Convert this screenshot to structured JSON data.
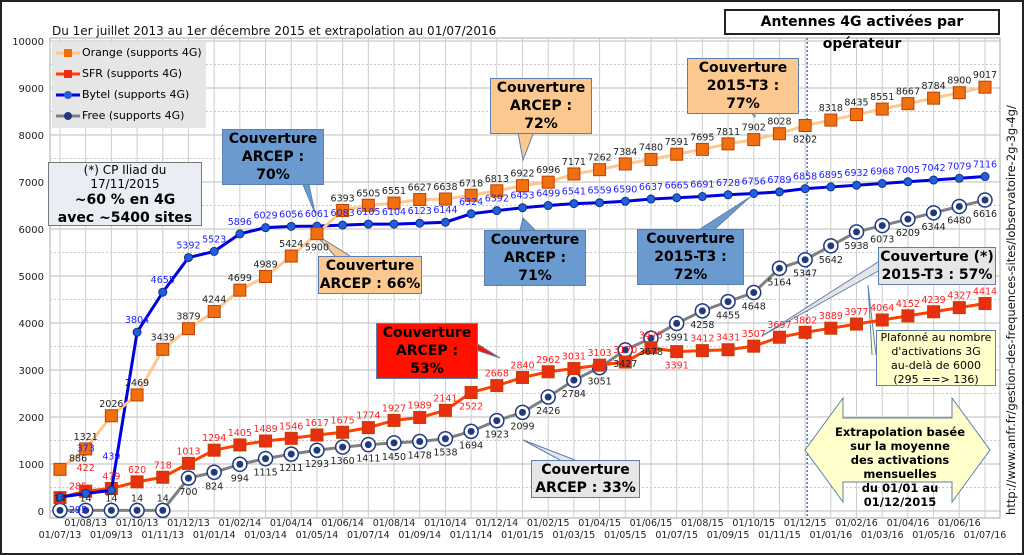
{
  "header": {
    "subtitle": "Du 1er juillet 2013 au 1er décembre 2015 et extrapolation au 01/07/2016",
    "title": "Antennes 4G activées par opérateur",
    "source_url": "http://www.anfr.fr/gestion-des-frequences-sites/lobservatoire-2g-3g-4g/"
  },
  "legend": [
    {
      "label": "Orange (supports 4G)",
      "color": "#f07010",
      "line": "#ffc890"
    },
    {
      "label": "SFR (supports 4G)",
      "color": "#e83010",
      "line": "#ff4000"
    },
    {
      "label": "Bytel (supports 4G)",
      "color": "#2060e0",
      "line": "#0000e0"
    },
    {
      "label": "Free (supports 4G)",
      "color": "#203a80",
      "line": "#808080"
    }
  ],
  "annotations": {
    "iliad_line1": "(*) CP Iliad du 17/11/2015",
    "iliad_line2": "~60 % en 4G",
    "iliad_line3": "avec ~5400 sites",
    "bytel70": [
      "Couverture",
      "ARCEP : 70%"
    ],
    "orange72": [
      "Couverture",
      "ARCEP : 72%"
    ],
    "orange77": [
      "Couverture",
      "2015-T3 : 77%"
    ],
    "orange66": [
      "Couverture",
      "ARCEP : 66%"
    ],
    "bytel71": [
      "Couverture",
      "ARCEP : 71%"
    ],
    "bytel72": [
      "Couverture",
      "2015-T3 : 72%"
    ],
    "free57": [
      "Couverture (*)",
      "2015-T3 : 57%"
    ],
    "sfr53": [
      "Couverture",
      "ARCEP : 53%"
    ],
    "free33": [
      "Couverture",
      "ARCEP : 33%"
    ],
    "plafond": [
      "Plafonné au nombre",
      "d'activations 3G",
      "au-delà de 6000",
      "(295 ==> 136)"
    ],
    "extrapolation": [
      "Extrapolation basée",
      "sur la moyenne",
      "des activations mensuelles",
      "du 01/01 au 01/12/2015"
    ]
  },
  "chart_data": {
    "type": "line",
    "title": "Antennes 4G activées par opérateur",
    "xlabel": "",
    "ylabel": "",
    "ylim": [
      0,
      10000
    ],
    "yticks": [
      0,
      1000,
      2000,
      3000,
      4000,
      5000,
      6000,
      7000,
      8000,
      9000,
      10000
    ],
    "grid": true,
    "legend_position": "top-left",
    "categories": [
      "01/07/13",
      "01/08/13",
      "01/09/13",
      "01/10/13",
      "01/11/13",
      "01/12/13",
      "01/01/14",
      "01/02/14",
      "01/03/14",
      "01/04/14",
      "01/05/14",
      "01/06/14",
      "01/07/14",
      "01/08/14",
      "01/09/14",
      "01/10/14",
      "01/11/14",
      "01/12/14",
      "01/01/15",
      "01/02/15",
      "01/03/15",
      "01/04/15",
      "01/05/15",
      "01/06/15",
      "01/07/15",
      "01/08/15",
      "01/09/15",
      "01/10/15",
      "01/11/15",
      "01/12/15",
      "01/01/16",
      "01/02/16",
      "01/03/16",
      "01/04/16",
      "01/05/16",
      "01/06/16",
      "01/07/16"
    ],
    "extrapolation_start": "01/12/15",
    "series": [
      {
        "name": "Orange (supports 4G)",
        "label_color": "#222222",
        "values": [
          886,
          1321,
          2026,
          2469,
          3439,
          3879,
          4244,
          4699,
          4989,
          5424,
          5900,
          6393,
          6505,
          6551,
          6627,
          6638,
          6718,
          6813,
          6922,
          6996,
          7171,
          7262,
          7384,
          7480,
          7591,
          7695,
          7811,
          7902,
          8028,
          8202,
          8318,
          8435,
          8551,
          8667,
          8784,
          8900,
          9017
        ]
      },
      {
        "name": "SFR (supports 4G)",
        "label_color": "#ff2020",
        "values": [
          285,
          422,
          479,
          620,
          718,
          1013,
          1294,
          1405,
          1489,
          1546,
          1617,
          1675,
          1774,
          1927,
          1989,
          2141,
          2522,
          2668,
          2840,
          2962,
          3031,
          3103,
          3170,
          3475,
          3391,
          3412,
          3431,
          3507,
          3697,
          3802,
          3889,
          3977,
          4064,
          4152,
          4239,
          4327,
          4414
        ]
      },
      {
        "name": "Bytel (supports 4G)",
        "label_color": "#2020ff",
        "values": [
          295,
          373,
          439,
          3804,
          4655,
          5392,
          5523,
          5896,
          6029,
          6056,
          6061,
          6083,
          6105,
          6104,
          6123,
          6144,
          6324,
          6392,
          6453,
          6499,
          6541,
          6559,
          6590,
          6637,
          6665,
          6691,
          6728,
          6756,
          6789,
          6858,
          6895,
          6932,
          6968,
          7005,
          7042,
          7079,
          7116
        ]
      },
      {
        "name": "Free (supports 4G)",
        "label_color": "#222222",
        "values": [
          14,
          14,
          14,
          14,
          14,
          700,
          824,
          994,
          1115,
          1211,
          1293,
          1360,
          1411,
          1450,
          1478,
          1538,
          1694,
          1923,
          2099,
          2426,
          2784,
          3051,
          3427,
          3678,
          3991,
          4258,
          4455,
          4648,
          5164,
          5347,
          5642,
          5938,
          6073,
          6209,
          6344,
          6480,
          6616
        ]
      }
    ]
  }
}
